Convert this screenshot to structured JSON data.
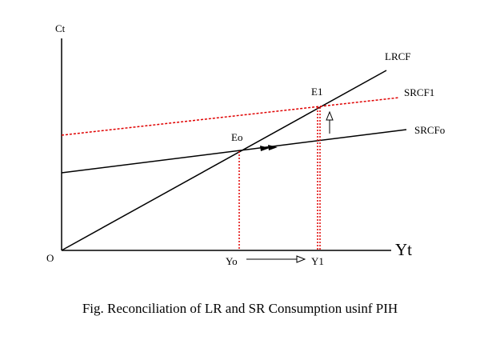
{
  "figure": {
    "caption": "Fig. Reconciliation of LR and SR Consumption usinf PIH"
  },
  "axes": {
    "y_label": "Ct",
    "x_label": "Yt",
    "origin_label": "O"
  },
  "curves": {
    "lrcf": "LRCF",
    "srcf1": "SRCF1",
    "srcf0": "SRCFo"
  },
  "points": {
    "e0": "Eo",
    "e1": "E1"
  },
  "x_ticks": {
    "y0": "Yo",
    "y1": "Y1"
  },
  "colors": {
    "solid_lines": "#000000",
    "dashed_red": "#e00000"
  }
}
